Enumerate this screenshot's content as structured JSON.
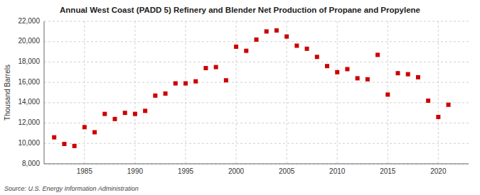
{
  "chart_data": {
    "type": "scatter",
    "title": "Annual West Coast (PADD 5) Refinery and Blender Net Production of Propane and Propylene",
    "ylabel": "Thousand Barrels",
    "annotations": [
      "Source: U.S. Energy Information Administration"
    ],
    "color": "#cc0000",
    "marker": "square",
    "grid": true,
    "xlim": [
      1981,
      2023
    ],
    "ylim": [
      8000,
      22000
    ],
    "xticks": [
      1985,
      1990,
      1995,
      2000,
      2005,
      2010,
      2015,
      2020
    ],
    "yticks": [
      {
        "value": 8000,
        "label": "8,000"
      },
      {
        "value": 10000,
        "label": "10,000"
      },
      {
        "value": 12000,
        "label": "12,000"
      },
      {
        "value": 14000,
        "label": "14,000"
      },
      {
        "value": 16000,
        "label": "16,000"
      },
      {
        "value": 18000,
        "label": "18,000"
      },
      {
        "value": 20000,
        "label": "20,000"
      },
      {
        "value": 22000,
        "label": "22,000"
      }
    ],
    "x": [
      1982,
      1983,
      1984,
      1985,
      1986,
      1987,
      1988,
      1989,
      1990,
      1991,
      1992,
      1993,
      1994,
      1995,
      1996,
      1997,
      1998,
      1999,
      2000,
      2001,
      2002,
      2003,
      2004,
      2005,
      2006,
      2007,
      2008,
      2009,
      2010,
      2011,
      2012,
      2013,
      2014,
      2015,
      2016,
      2017,
      2018,
      2019,
      2020,
      2021
    ],
    "values": [
      10600,
      9950,
      9750,
      11600,
      11100,
      12900,
      12400,
      13000,
      12900,
      13200,
      14700,
      14900,
      15900,
      15900,
      16100,
      17400,
      17500,
      16200,
      19500,
      19100,
      20200,
      21000,
      21100,
      20500,
      19600,
      19300,
      18500,
      17600,
      17000,
      17300,
      16400,
      16300,
      18700,
      14800,
      16900,
      16800,
      16500,
      14200,
      12600,
      13800
    ]
  }
}
